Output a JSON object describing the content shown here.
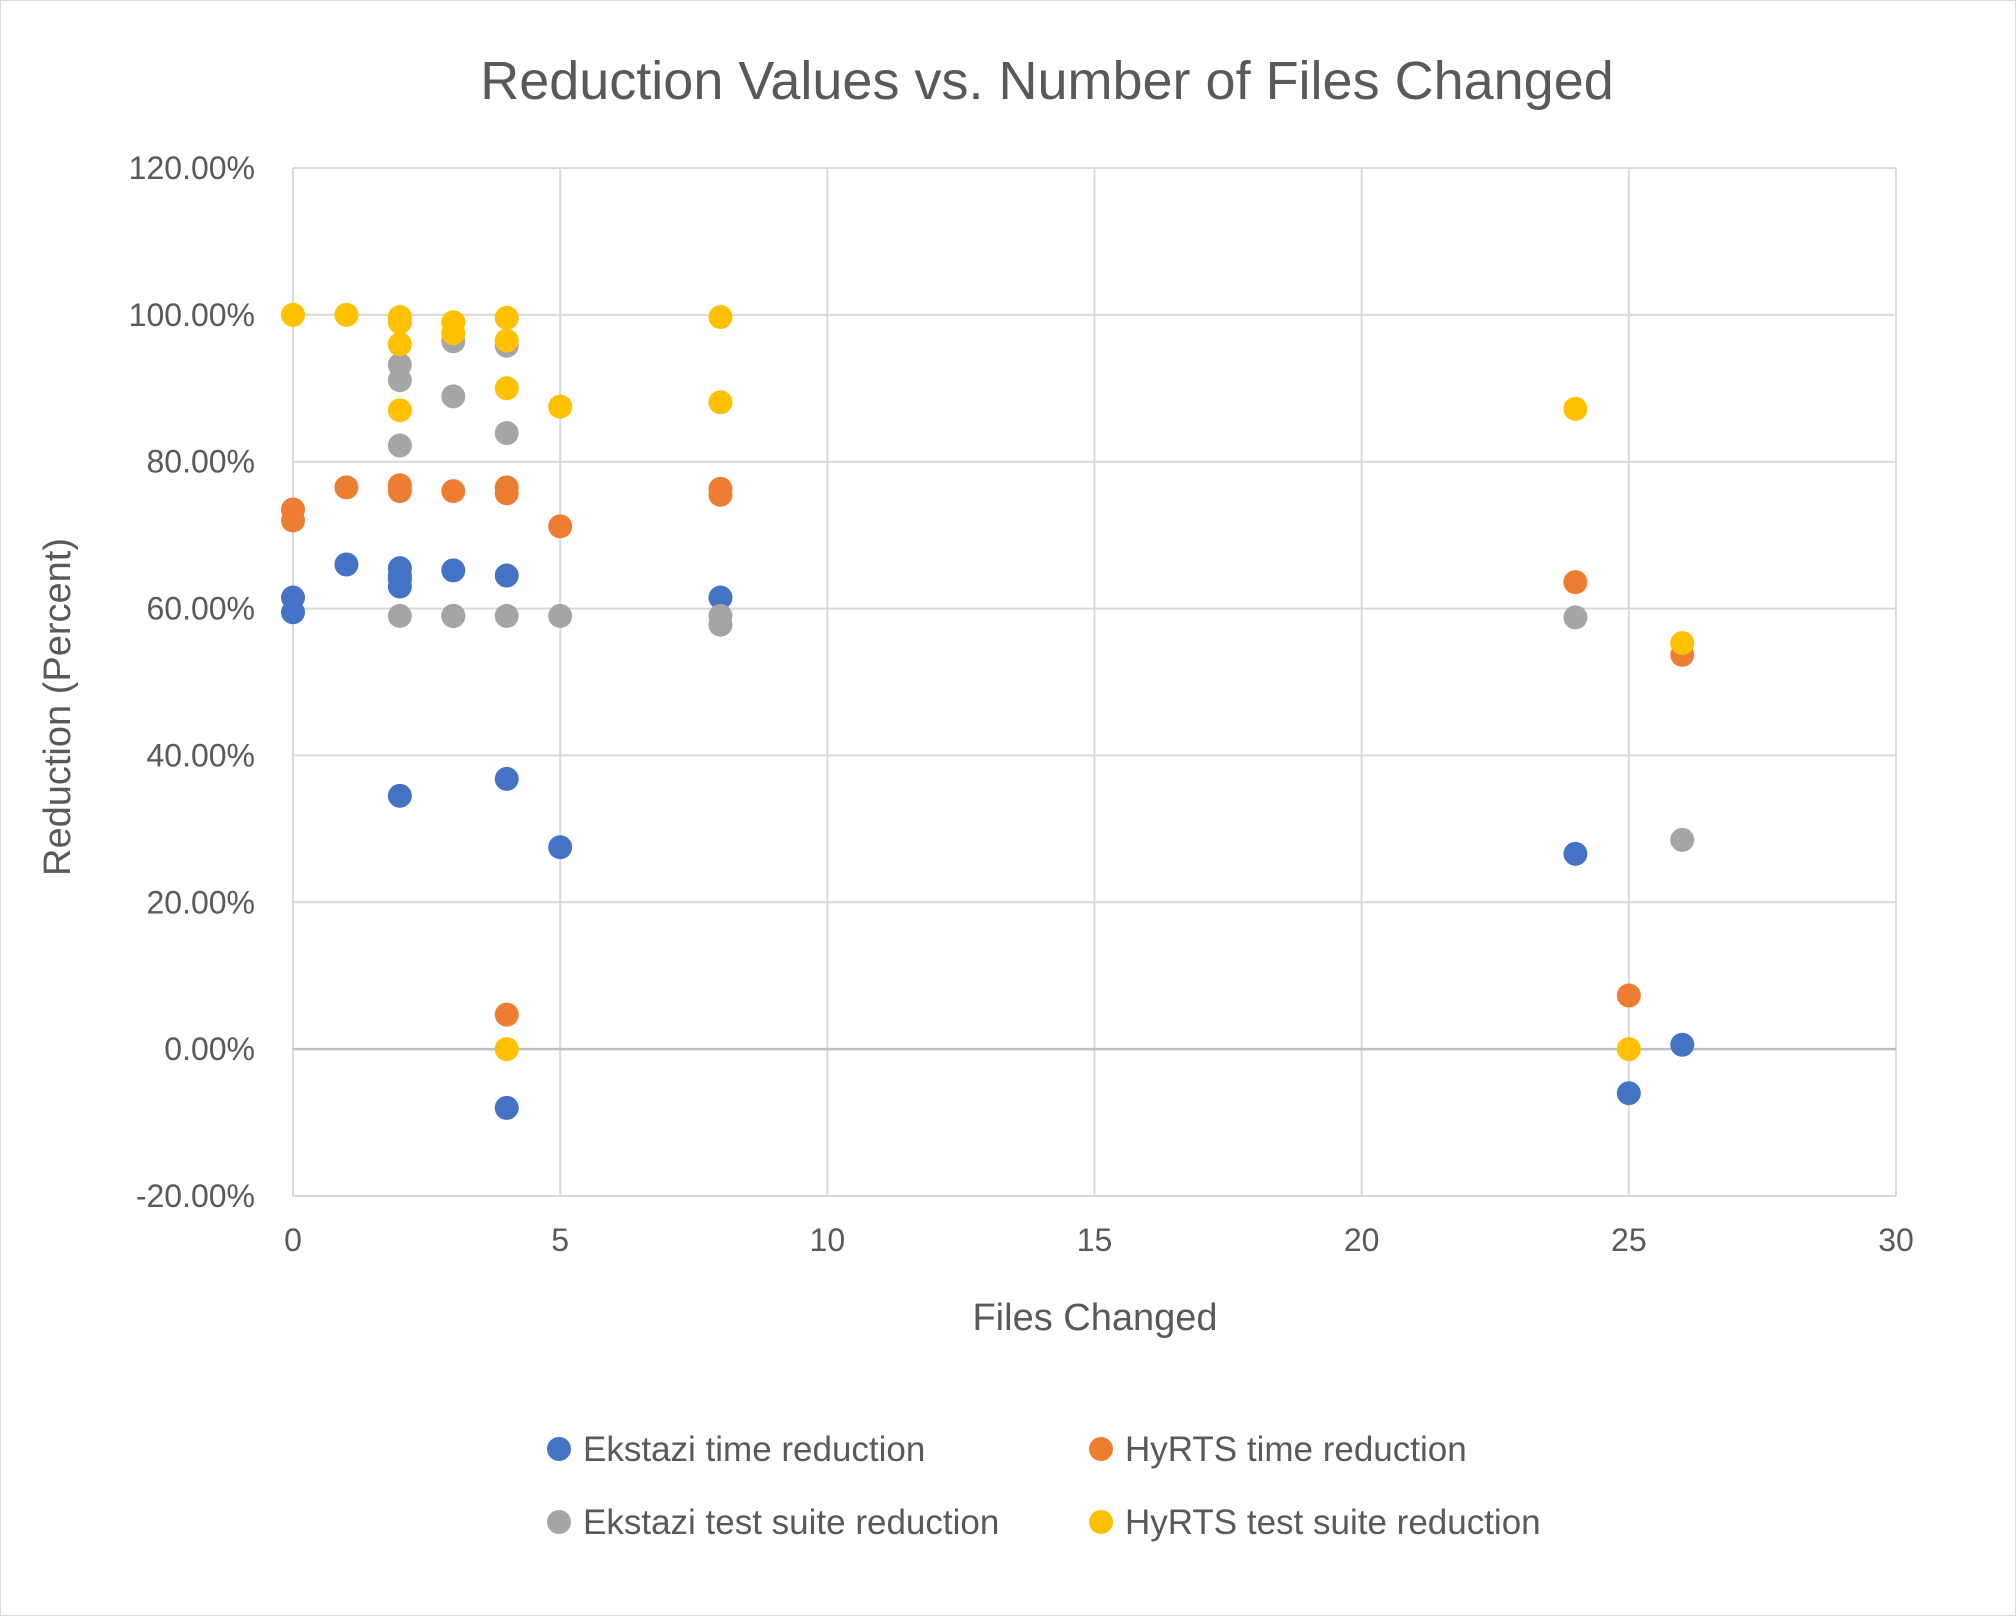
{
  "chart_data": {
    "type": "scatter",
    "title": "Reduction Values vs. Number of Files Changed",
    "xlabel": "Files Changed",
    "ylabel": "Reduction (Percent)",
    "xlim": [
      0,
      30
    ],
    "ylim": [
      -0.2,
      1.2
    ],
    "x_ticks": [
      0,
      5,
      10,
      15,
      20,
      25,
      30
    ],
    "x_tick_labels": [
      "0",
      "5",
      "10",
      "15",
      "20",
      "25",
      "30"
    ],
    "y_ticks": [
      -0.2,
      0,
      0.2,
      0.4,
      0.6,
      0.8,
      1.0,
      1.2
    ],
    "y_tick_labels": [
      "-20.00%",
      "0.00%",
      "20.00%",
      "40.00%",
      "60.00%",
      "80.00%",
      "100.00%",
      "120.00%"
    ],
    "grid": "both",
    "legend_position": "bottom",
    "series": [
      {
        "name": "Ekstazi time reduction",
        "color": "#4472c4",
        "x": [
          0,
          0,
          1,
          2,
          2,
          2,
          2,
          3,
          3,
          4,
          4,
          4,
          2,
          5,
          8,
          24,
          25,
          26
        ],
        "y": [
          0.615,
          0.595,
          0.66,
          0.655,
          0.645,
          0.63,
          0.345,
          0.652,
          0.59,
          0.645,
          0.368,
          -0.08,
          0.64,
          0.275,
          0.615,
          0.266,
          -0.06,
          0.006
        ]
      },
      {
        "name": "HyRTS time reduction",
        "color": "#ed7d31",
        "x": [
          0,
          0,
          1,
          2,
          2,
          3,
          4,
          4,
          4,
          5,
          8,
          8,
          24,
          25,
          26
        ],
        "y": [
          0.735,
          0.72,
          0.765,
          0.768,
          0.76,
          0.76,
          0.765,
          0.757,
          0.047,
          0.712,
          0.763,
          0.755,
          0.636,
          0.073,
          0.537
        ]
      },
      {
        "name": "Ekstazi test suite reduction",
        "color": "#a5a5a5",
        "x": [
          2,
          2,
          2,
          2,
          3,
          3,
          3,
          4,
          4,
          4,
          5,
          8,
          8,
          24,
          26
        ],
        "y": [
          0.932,
          0.911,
          0.822,
          0.59,
          0.964,
          0.889,
          0.59,
          0.958,
          0.839,
          0.59,
          0.59,
          0.59,
          0.578,
          0.588,
          0.285
        ]
      },
      {
        "name": "HyRTS test suite reduction",
        "color": "#ffc000",
        "x": [
          0,
          1,
          2,
          2,
          2,
          2,
          3,
          3,
          4,
          4,
          4,
          4,
          5,
          8,
          8,
          24,
          25,
          26
        ],
        "y": [
          1.0,
          1.0,
          0.997,
          0.99,
          0.96,
          0.87,
          0.99,
          0.975,
          0.996,
          0.965,
          0.9,
          0.0,
          0.875,
          0.997,
          0.881,
          0.872,
          0.0,
          0.553
        ]
      }
    ]
  }
}
